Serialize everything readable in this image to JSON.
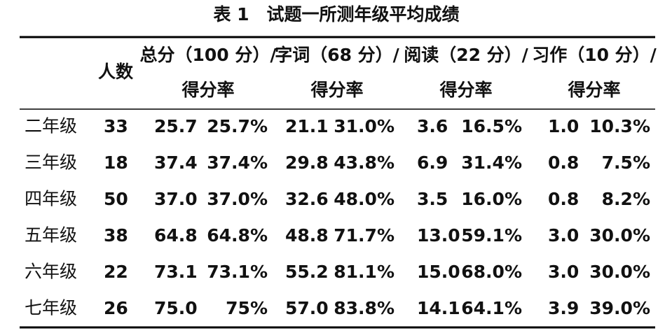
{
  "header": {
    "title": "表 1　试题一所测年级平均成绩",
    "count_label": "人数",
    "groups": [
      {
        "name": "总分（100 分）/",
        "sub": "得分率"
      },
      {
        "name": "字词（68 分）/",
        "sub": "得分率"
      },
      {
        "name": "阅读（22 分）/",
        "sub": "得分率"
      },
      {
        "name": "习作（10 分）/",
        "sub": "得分率"
      }
    ]
  },
  "table": {
    "rows": [
      [
        "二年级",
        "33",
        "25.7",
        "25.7%",
        "21.1",
        "31.0%",
        "3.6",
        "16.5%",
        "1.0",
        "10.3%"
      ],
      [
        "三年级",
        "18",
        "37.4",
        "37.4%",
        "29.8",
        "43.8%",
        "6.9",
        "31.4%",
        "0.8",
        "7.5%"
      ],
      [
        "四年级",
        "50",
        "37.0",
        "37.0%",
        "32.6",
        "48.0%",
        "3.5",
        "16.0%",
        "0.8",
        "8.2%"
      ],
      [
        "五年级",
        "38",
        "64.8",
        "64.8%",
        "48.8",
        "71.7%",
        "13.0",
        "59.1%",
        "3.0",
        "30.0%"
      ],
      [
        "六年级",
        "22",
        "73.1",
        "73.1%",
        "55.2",
        "81.1%",
        "15.0",
        "68.0%",
        "3.0",
        "30.0%"
      ],
      [
        "七年级",
        "26",
        "75.0",
        "75%",
        "57.0",
        "83.8%",
        "14.1",
        "64.1%",
        "3.9",
        "39.0%"
      ]
    ]
  }
}
